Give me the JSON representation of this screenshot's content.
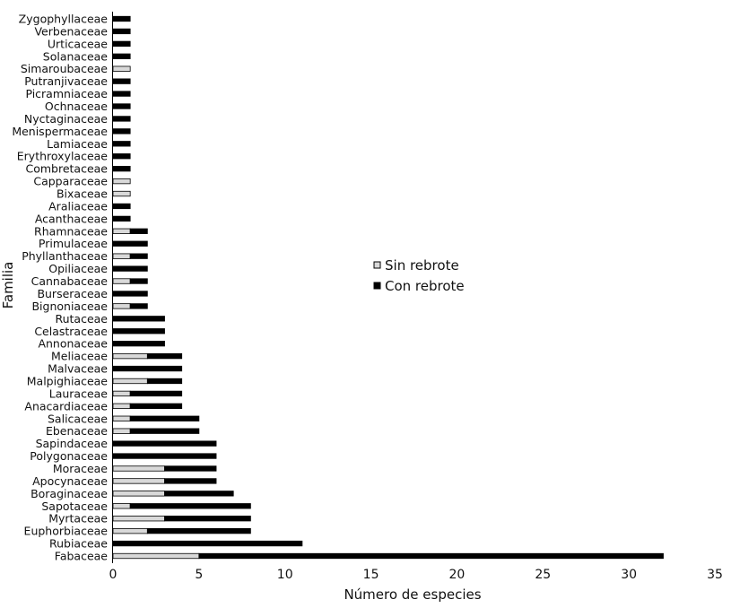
{
  "chart_data": {
    "type": "bar",
    "orientation": "horizontal",
    "stacked": true,
    "title": "",
    "xlabel": "Número de especies",
    "ylabel": "Familia",
    "xlim": [
      0,
      35
    ],
    "xticks": [
      0,
      5,
      10,
      15,
      20,
      25,
      30,
      35
    ],
    "grid": false,
    "legend_position": "center-right",
    "categories": [
      "Fabaceae",
      "Rubiaceae",
      "Euphorbiaceae",
      "Myrtaceae",
      "Sapotaceae",
      "Boraginaceae",
      "Apocynaceae",
      "Moraceae",
      "Polygonaceae",
      "Sapindaceae",
      "Ebenaceae",
      "Salicaceae",
      "Anacardiaceae",
      "Lauraceae",
      "Malpighiaceae",
      "Malvaceae",
      "Meliaceae",
      "Annonaceae",
      "Celastraceae",
      "Rutaceae",
      "Bignoniaceae",
      "Burseraceae",
      "Cannabaceae",
      "Opiliaceae",
      "Phyllanthaceae",
      "Primulaceae",
      "Rhamnaceae",
      "Acanthaceae",
      "Araliaceae",
      "Bixaceae",
      "Capparaceae",
      "Combretaceae",
      "Erythroxylaceae",
      "Lamiaceae",
      "Menispermaceae",
      "Nyctaginaceae",
      "Ochnaceae",
      "Picramniaceae",
      "Putranjivaceae",
      "Simaroubaceae",
      "Solanaceae",
      "Urticaceae",
      "Verbenaceae",
      "Zygophyllaceae"
    ],
    "series": [
      {
        "name": "Sin rebrote",
        "color": "#d9d9d9",
        "values": [
          5,
          0,
          2,
          3,
          1,
          3,
          3,
          3,
          0,
          0,
          1,
          1,
          1,
          1,
          2,
          0,
          2,
          0,
          0,
          0,
          1,
          0,
          1,
          0,
          1,
          0,
          1,
          0,
          0,
          1,
          1,
          0,
          0,
          0,
          0,
          0,
          0,
          0,
          0,
          1,
          0,
          0,
          0,
          0
        ]
      },
      {
        "name": "Con rebrote",
        "color": "#000000",
        "values": [
          27,
          11,
          6,
          5,
          7,
          4,
          3,
          3,
          6,
          6,
          4,
          4,
          3,
          3,
          2,
          4,
          2,
          3,
          3,
          3,
          1,
          2,
          1,
          2,
          1,
          2,
          1,
          1,
          1,
          0,
          0,
          1,
          1,
          1,
          1,
          1,
          1,
          1,
          1,
          0,
          1,
          1,
          1,
          1
        ]
      }
    ]
  }
}
